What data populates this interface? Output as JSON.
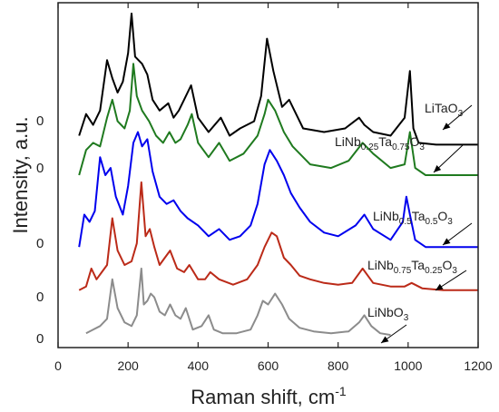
{
  "chart_data": {
    "type": "line",
    "xlabel": "Raman shift, cm",
    "xlabel_sup": "-1",
    "ylabel": "Intensity, a.u.",
    "xlim": [
      0,
      1200
    ],
    "xticks": [
      0,
      200,
      400,
      600,
      800,
      1000,
      1200
    ],
    "grid": false,
    "legend": "none",
    "series": [
      {
        "name": "LiTaO3",
        "label_parts": [
          {
            "t": "LiTaO"
          },
          {
            "t": "3",
            "sub": true
          }
        ],
        "color": "#000000",
        "baseline": 0.8,
        "x": [
          60,
          80,
          100,
          120,
          140,
          155,
          170,
          185,
          200,
          210,
          220,
          240,
          255,
          270,
          290,
          315,
          330,
          345,
          360,
          380,
          400,
          430,
          465,
          490,
          520,
          560,
          580,
          597,
          615,
          640,
          660,
          700,
          760,
          820,
          860,
          875,
          900,
          950,
          990,
          1005,
          1015,
          1030,
          1080,
          1120,
          1200
        ],
        "y": [
          0.8,
          1.4,
          1.1,
          1.5,
          2.9,
          2.4,
          2.0,
          2.3,
          3.1,
          4.2,
          3.0,
          2.8,
          2.5,
          1.8,
          1.5,
          1.7,
          1.3,
          1.5,
          1.8,
          2.2,
          1.3,
          0.9,
          1.3,
          0.8,
          1.0,
          1.2,
          1.9,
          3.5,
          2.6,
          1.6,
          1.8,
          1.0,
          0.9,
          1.0,
          1.3,
          1.1,
          0.9,
          0.8,
          1.3,
          2.6,
          1.0,
          0.6,
          0.55,
          0.55,
          0.55
        ]
      },
      {
        "name": "LiNb0.25Ta0.75O3",
        "label_parts": [
          {
            "t": "LiNb"
          },
          {
            "t": "0.25",
            "sub": true
          },
          {
            "t": "Ta"
          },
          {
            "t": "0.75",
            "sub": true
          },
          {
            "t": "O"
          },
          {
            "t": "3",
            "sub": true
          }
        ],
        "color": "#1f7a1f",
        "baseline": -0.3,
        "x": [
          60,
          80,
          100,
          120,
          140,
          155,
          170,
          190,
          205,
          215,
          225,
          240,
          260,
          280,
          300,
          318,
          335,
          350,
          370,
          382,
          400,
          430,
          460,
          490,
          530,
          570,
          590,
          600,
          620,
          645,
          670,
          720,
          780,
          830,
          870,
          900,
          950,
          990,
          1005,
          1020,
          1050,
          1100,
          1200
        ],
        "y": [
          -0.3,
          0.4,
          0.6,
          0.5,
          1.3,
          1.8,
          1.2,
          1.0,
          1.5,
          2.8,
          1.9,
          1.5,
          1.2,
          0.8,
          0.6,
          0.9,
          0.6,
          0.7,
          1.1,
          1.4,
          0.6,
          0.2,
          0.6,
          0.1,
          0.3,
          0.8,
          1.4,
          1.8,
          1.5,
          0.9,
          0.5,
          0.0,
          -0.1,
          0.1,
          0.6,
          0.3,
          -0.1,
          0.0,
          0.9,
          -0.1,
          -0.3,
          -0.3,
          -0.3
        ]
      },
      {
        "name": "LiNb0.5Ta0.5O3",
        "label_parts": [
          {
            "t": "LiNb"
          },
          {
            "t": "0.5",
            "sub": true
          },
          {
            "t": "Ta"
          },
          {
            "t": "0.5",
            "sub": true
          },
          {
            "t": "O"
          },
          {
            "t": "3",
            "sub": true
          }
        ],
        "color": "#0000ee",
        "baseline": -2.3,
        "x": [
          60,
          75,
          90,
          105,
          120,
          135,
          150,
          165,
          185,
          200,
          215,
          228,
          240,
          255,
          270,
          290,
          310,
          330,
          350,
          370,
          400,
          430,
          460,
          490,
          520,
          550,
          570,
          590,
          605,
          625,
          645,
          665,
          690,
          720,
          760,
          800,
          850,
          875,
          900,
          950,
          985,
          995,
          1005,
          1020,
          1050,
          1100,
          1200
        ],
        "y": [
          -2.3,
          -1.4,
          -1.6,
          -1.3,
          0.2,
          -0.3,
          -0.1,
          -0.9,
          -1.4,
          -0.6,
          0.6,
          0.9,
          0.5,
          0.7,
          -0.2,
          -0.9,
          -1.1,
          -1.0,
          -1.3,
          -1.5,
          -1.7,
          -2.0,
          -1.8,
          -2.1,
          -2.0,
          -1.7,
          -1.1,
          0.0,
          0.4,
          0.1,
          -0.3,
          -0.8,
          -1.2,
          -1.6,
          -1.9,
          -2.0,
          -1.7,
          -1.4,
          -1.8,
          -2.1,
          -1.6,
          -0.9,
          -1.4,
          -2.1,
          -2.3,
          -2.3,
          -2.3
        ]
      },
      {
        "name": "LiNb0.75Ta0.25O3",
        "label_parts": [
          {
            "t": "LiNb"
          },
          {
            "t": "0.75",
            "sub": true
          },
          {
            "t": "Ta"
          },
          {
            "t": "0.25",
            "sub": true
          },
          {
            "t": "O"
          },
          {
            "t": "3",
            "sub": true
          }
        ],
        "color": "#bb2a18",
        "baseline": -3.5,
        "x": [
          60,
          80,
          95,
          110,
          125,
          140,
          155,
          170,
          190,
          210,
          225,
          238,
          250,
          262,
          275,
          290,
          305,
          320,
          340,
          360,
          375,
          400,
          420,
          435,
          460,
          500,
          540,
          570,
          590,
          610,
          625,
          645,
          665,
          690,
          720,
          760,
          800,
          840,
          870,
          900,
          950,
          990,
          1010,
          1040,
          1100,
          1200
        ],
        "y": [
          -3.5,
          -3.4,
          -2.9,
          -3.2,
          -3.0,
          -2.8,
          -1.5,
          -2.4,
          -2.8,
          -2.7,
          -2.2,
          -0.5,
          -2.0,
          -1.8,
          -2.3,
          -2.8,
          -2.6,
          -2.4,
          -2.9,
          -3.0,
          -2.8,
          -3.2,
          -3.2,
          -3.0,
          -3.2,
          -3.35,
          -3.2,
          -2.8,
          -2.3,
          -1.9,
          -2.0,
          -2.6,
          -2.8,
          -3.1,
          -3.2,
          -3.3,
          -3.35,
          -3.3,
          -2.9,
          -3.3,
          -3.4,
          -3.4,
          -3.3,
          -3.45,
          -3.5,
          -3.5
        ]
      },
      {
        "name": "LiNbO3",
        "label_parts": [
          {
            "t": "LiNbO"
          },
          {
            "t": "3",
            "sub": true
          }
        ],
        "color": "#8c8c8c",
        "baseline": -4.7,
        "x": [
          80,
          100,
          120,
          140,
          155,
          170,
          190,
          210,
          225,
          238,
          245,
          255,
          265,
          275,
          290,
          305,
          320,
          335,
          350,
          365,
          385,
          410,
          430,
          445,
          470,
          510,
          550,
          570,
          585,
          600,
          620,
          640,
          660,
          690,
          730,
          780,
          830,
          860,
          875,
          895,
          920,
          950
        ],
        "y": [
          -4.7,
          -4.6,
          -4.5,
          -4.3,
          -3.2,
          -4.0,
          -4.4,
          -4.5,
          -4.2,
          -2.9,
          -3.9,
          -3.8,
          -3.6,
          -3.7,
          -4.1,
          -4.2,
          -3.9,
          -4.2,
          -4.3,
          -4.0,
          -4.6,
          -4.5,
          -4.2,
          -4.6,
          -4.7,
          -4.7,
          -4.6,
          -4.2,
          -3.8,
          -3.9,
          -3.6,
          -3.9,
          -4.3,
          -4.55,
          -4.65,
          -4.7,
          -4.65,
          -4.4,
          -4.2,
          -4.5,
          -4.7,
          -4.75
        ]
      }
    ],
    "baseline_marker": "0"
  },
  "colors": {
    "axis": "#222222",
    "arrow": "#000000"
  }
}
